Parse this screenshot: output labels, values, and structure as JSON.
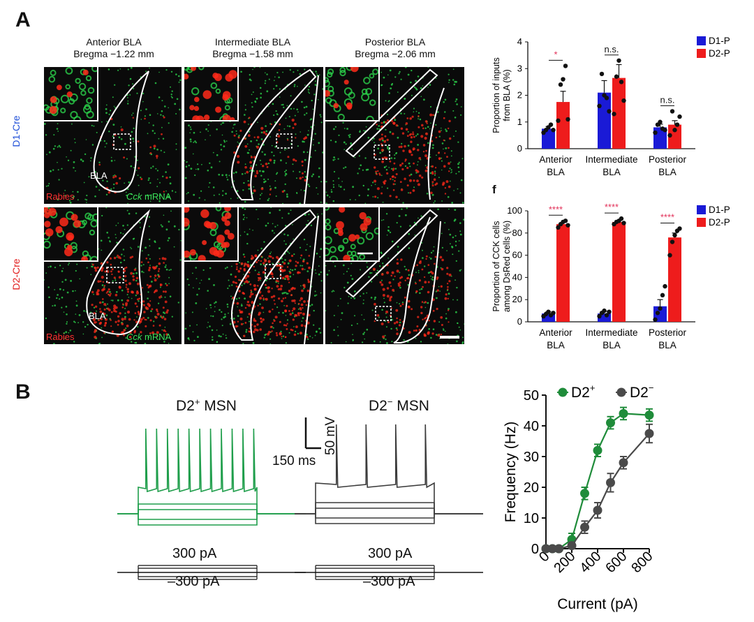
{
  "panel_a": {
    "letter": "A",
    "columns": [
      {
        "title_l1": "Anterior BLA",
        "title_l2": "Bregma −1.22 mm"
      },
      {
        "title_l1": "Intermediate BLA",
        "title_l2": "Bregma −1.58 mm"
      },
      {
        "title_l1": "Posterior BLA",
        "title_l2": "Bregma −2.06 mm"
      }
    ],
    "rows": [
      {
        "label": "D1-Cre",
        "color": "#1f4fd8"
      },
      {
        "label": "D2-Cre",
        "color": "#e21c1c"
      }
    ],
    "bla_label": "BLA",
    "rabies_label": "Rabies",
    "cck_italic": "Cck",
    "cck_rest": " mRNA",
    "colors": {
      "rabies": "#ff2a1a",
      "cck": "#2bd14a"
    }
  },
  "panel_f_letter": "f",
  "chart_data": [
    {
      "type": "bar",
      "id": "inputs",
      "categories": [
        "Anterior BLA",
        "Intermediate BLA",
        "Posterior BLA"
      ],
      "category_lines": [
        [
          "Anterior",
          "BLA"
        ],
        [
          "Intermediate",
          "BLA"
        ],
        [
          "Posterior",
          "BLA"
        ]
      ],
      "series": [
        {
          "name": "D1-P",
          "color": "#1a1ad6",
          "values": [
            0.75,
            2.1,
            0.8
          ],
          "errors": [
            0.08,
            0.45,
            0.12
          ],
          "points": [
            [
              0.6,
              0.7,
              0.8,
              0.9,
              0.7
            ],
            [
              1.6,
              2.8,
              2.0,
              1.9,
              1.4
            ],
            [
              0.6,
              0.9,
              1.0,
              0.75,
              0.7
            ]
          ]
        },
        {
          "name": "D2-P",
          "color": "#ee1c1c",
          "values": [
            1.75,
            2.65,
            0.9
          ],
          "errors": [
            0.4,
            0.5,
            0.15
          ],
          "points": [
            [
              1.05,
              2.4,
              2.6,
              3.1,
              1.1
            ],
            [
              1.3,
              2.7,
              3.3,
              2.5,
              1.8
            ],
            [
              0.5,
              1.4,
              0.7,
              0.9,
              1.2
            ]
          ]
        }
      ],
      "ylabel_l1": "Proportion of inputs",
      "ylabel_l2": "from BLA (%)",
      "ylim": [
        0,
        4
      ],
      "yticks": [
        0,
        1,
        2,
        3,
        4
      ],
      "significance": [
        {
          "text": "*",
          "color": "#e2325a"
        },
        {
          "text": "n.s.",
          "color": "#111111"
        },
        {
          "text": "n.s.",
          "color": "#111111"
        }
      ],
      "legend": "top-right"
    },
    {
      "type": "bar",
      "id": "cck",
      "categories": [
        "Anterior BLA",
        "Intermediate BLA",
        "Posterior BLA"
      ],
      "category_lines": [
        [
          "Anterior",
          "BLA"
        ],
        [
          "Intermediate",
          "BLA"
        ],
        [
          "Posterior",
          "BLA"
        ]
      ],
      "series": [
        {
          "name": "D1-P",
          "color": "#1a1ad6",
          "values": [
            7.5,
            7.5,
            14
          ],
          "errors": [
            1.5,
            2,
            6
          ],
          "points": [
            [
              5,
              7,
              9,
              6,
              8
            ],
            [
              5,
              8,
              10,
              6,
              9
            ],
            [
              2,
              8,
              12,
              24,
              32
            ]
          ]
        },
        {
          "name": "D2-P",
          "color": "#ee1c1c",
          "values": [
            88,
            90,
            76
          ],
          "errors": [
            1.5,
            1.2,
            4
          ],
          "points": [
            [
              85,
              88,
              90,
              91,
              87
            ],
            [
              88,
              90,
              91,
              93,
              89
            ],
            [
              60,
              72,
              78,
              82,
              84
            ]
          ]
        }
      ],
      "ylabel_l1": "Proportion of CCK cells",
      "ylabel_l2": "among DsRed cells (%)",
      "ylim": [
        0,
        100
      ],
      "yticks": [
        0,
        20,
        40,
        60,
        80,
        100
      ],
      "significance": [
        {
          "text": "****",
          "color": "#e2325a"
        },
        {
          "text": "****",
          "color": "#e2325a"
        },
        {
          "text": "****",
          "color": "#e2325a"
        }
      ],
      "legend": "top-right"
    },
    {
      "type": "line",
      "id": "fi",
      "x": [
        0,
        50,
        100,
        200,
        300,
        400,
        500,
        600,
        800
      ],
      "series": [
        {
          "name_base": "D2",
          "name_sup": "+",
          "color": "#1f8c3a",
          "values": [
            0,
            0,
            0,
            3,
            18,
            32,
            41,
            44,
            43.5
          ],
          "errors": [
            0,
            0,
            0,
            2,
            2,
            2,
            2,
            2,
            2
          ]
        },
        {
          "name_base": "D2",
          "name_sup": "−",
          "color": "#4a4a4a",
          "values": [
            0,
            0,
            0,
            1,
            7,
            12.5,
            21.5,
            28,
            37.5
          ],
          "errors": [
            0,
            0,
            0,
            1,
            2,
            2.5,
            3,
            2,
            3
          ]
        }
      ],
      "xlabel": "Current (pA)",
      "ylabel": "Frequency (Hz)",
      "xlim": [
        0,
        800
      ],
      "ylim": [
        0,
        50
      ],
      "xticks": [
        0,
        200,
        400,
        600,
        800
      ],
      "yticks": [
        0,
        10,
        20,
        30,
        40,
        50
      ],
      "legend": "top"
    }
  ],
  "panel_b": {
    "letter": "B",
    "trace1": {
      "title_base": "D2",
      "title_sup": "+",
      "title_rest": " MSN",
      "color": "#1f9e4b"
    },
    "trace2": {
      "title_base": "D2",
      "title_sup": "−",
      "title_rest": " MSN",
      "color": "#3c3c3c"
    },
    "scale_v": "50 mV",
    "scale_t": "150 ms",
    "step_high": "300 pA",
    "step_low": "–300 pA"
  }
}
